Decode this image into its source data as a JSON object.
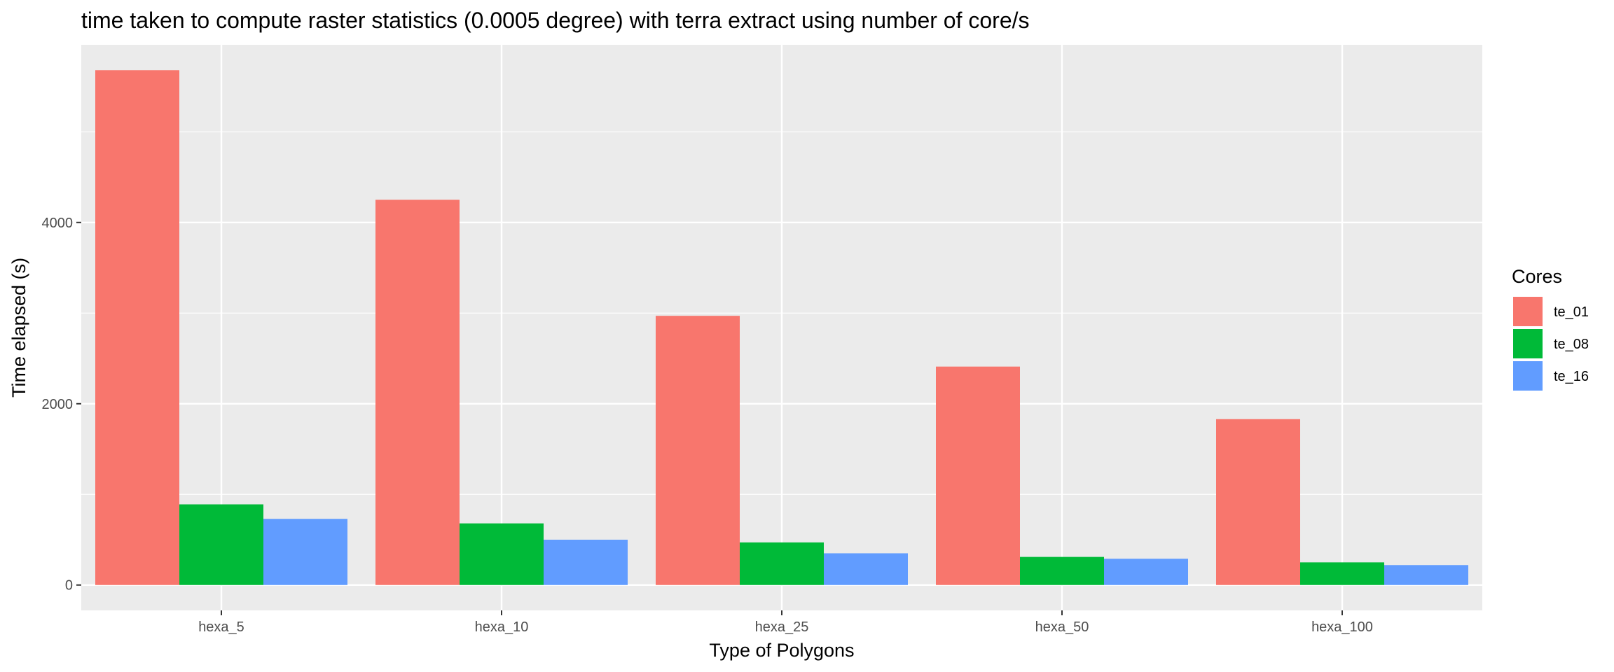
{
  "chart_data": {
    "type": "bar",
    "title": "time taken to compute raster statistics (0.0005 degree) with terra extract using number of core/s",
    "xlabel": "Type of Polygons",
    "ylabel": "Time elapsed (s)",
    "categories": [
      "hexa_5",
      "hexa_10",
      "hexa_25",
      "hexa_50",
      "hexa_100"
    ],
    "series": [
      {
        "name": "te_01",
        "color": "#F8766D",
        "values": [
          5680,
          4250,
          2970,
          2410,
          1830
        ]
      },
      {
        "name": "te_08",
        "color": "#00BA38",
        "values": [
          890,
          680,
          470,
          310,
          250
        ]
      },
      {
        "name": "te_16",
        "color": "#619CFF",
        "values": [
          730,
          500,
          350,
          290,
          220
        ]
      }
    ],
    "ylim": [
      -280,
      5960
    ],
    "yticks": [
      0,
      2000,
      4000
    ],
    "yticks_minor": [
      1000,
      3000,
      5000
    ],
    "legend": {
      "title": "Cores",
      "position": "right"
    },
    "grid": true,
    "panel_background": "#EBEBEB",
    "grid_color": "#FFFFFF"
  }
}
